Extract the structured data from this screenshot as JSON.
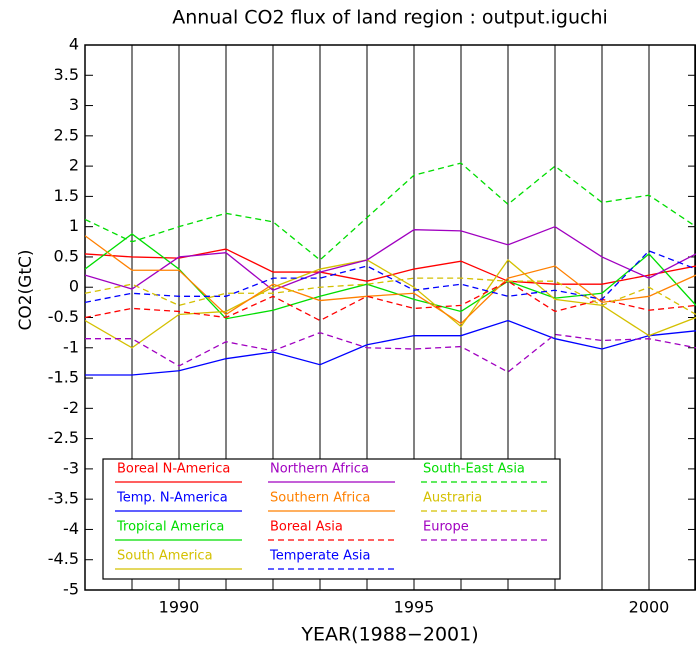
{
  "chart_data": {
    "type": "line",
    "title": "Annual CO2 flux of land region : output.iguchi",
    "x_label": "YEAR(1988−2001)",
    "y_label": "CO2(GtC)",
    "x": [
      1988,
      1989,
      1990,
      1991,
      1992,
      1993,
      1994,
      1995,
      1996,
      1997,
      1998,
      1999,
      2000,
      2001
    ],
    "xlim": [
      1988,
      2001
    ],
    "xticks": [
      1990,
      1995,
      2000
    ],
    "ylim": [
      -5,
      4
    ],
    "yticks": [
      -5,
      -4.5,
      -4,
      -3.5,
      -3,
      -2.5,
      -2,
      -1.5,
      -1,
      -0.5,
      0,
      0.5,
      1,
      1.5,
      2,
      2.5,
      3,
      3.5,
      4
    ],
    "grid": true,
    "series": [
      {
        "name": "Boreal N-America",
        "color": "#ff0000",
        "dash": false,
        "values": [
          0.55,
          0.5,
          0.48,
          0.63,
          0.25,
          0.25,
          0.1,
          0.3,
          0.43,
          0.1,
          0.05,
          0.05,
          0.2,
          0.35
        ]
      },
      {
        "name": "Temp. N-America",
        "color": "#0000ff",
        "dash": false,
        "values": [
          -1.45,
          -1.45,
          -1.38,
          -1.18,
          -1.07,
          -1.28,
          -0.95,
          -0.8,
          -0.8,
          -0.55,
          -0.85,
          -1.02,
          -0.8,
          -0.72
        ]
      },
      {
        "name": "Tropical America",
        "color": "#00dd00",
        "dash": false,
        "values": [
          0.3,
          0.88,
          0.3,
          -0.52,
          -0.38,
          -0.15,
          0.05,
          -0.2,
          -0.4,
          0.1,
          -0.18,
          -0.1,
          0.55,
          -0.3
        ]
      },
      {
        "name": "South America",
        "color": "#d4c000",
        "dash": false,
        "values": [
          -0.55,
          -1.0,
          -0.45,
          -0.4,
          0.0,
          0.3,
          0.45,
          0.0,
          -0.65,
          0.45,
          -0.2,
          -0.3,
          -0.8,
          -0.5
        ]
      },
      {
        "name": "Northern Africa",
        "color": "#a000c0",
        "dash": false,
        "values": [
          0.2,
          -0.03,
          0.5,
          0.57,
          -0.05,
          0.25,
          0.45,
          0.95,
          0.93,
          0.7,
          1.0,
          0.5,
          0.15,
          0.55
        ]
      },
      {
        "name": "Southern Africa",
        "color": "#ff8000",
        "dash": false,
        "values": [
          0.85,
          0.28,
          0.28,
          -0.45,
          0.05,
          -0.22,
          -0.15,
          -0.1,
          -0.6,
          0.15,
          0.35,
          -0.25,
          -0.15,
          0.2
        ]
      },
      {
        "name": "Boreal Asia",
        "color": "#ff0000",
        "dash": true,
        "values": [
          -0.5,
          -0.35,
          -0.4,
          -0.5,
          -0.15,
          -0.55,
          -0.15,
          -0.35,
          -0.3,
          0.1,
          -0.4,
          -0.2,
          -0.38,
          -0.3
        ]
      },
      {
        "name": "Temperate Asia",
        "color": "#0000ff",
        "dash": true,
        "values": [
          -0.25,
          -0.1,
          -0.15,
          -0.15,
          0.15,
          0.15,
          0.35,
          -0.05,
          0.05,
          -0.15,
          -0.05,
          -0.2,
          0.6,
          0.3
        ]
      },
      {
        "name": "South-East Asia",
        "color": "#00dd00",
        "dash": true,
        "values": [
          1.12,
          0.75,
          1.0,
          1.22,
          1.08,
          0.45,
          1.15,
          1.85,
          2.05,
          1.37,
          2.0,
          1.4,
          1.52,
          1.0
        ]
      },
      {
        "name": "Austraria",
        "color": "#d4c000",
        "dash": true,
        "values": [
          -0.1,
          0.05,
          -0.3,
          -0.1,
          -0.1,
          0.0,
          0.05,
          0.15,
          0.15,
          0.1,
          0.1,
          -0.3,
          0.0,
          -0.45
        ]
      },
      {
        "name": "Europe",
        "color": "#a000c0",
        "dash": true,
        "values": [
          -0.85,
          -0.85,
          -1.3,
          -0.9,
          -1.05,
          -0.75,
          -1.0,
          -1.02,
          -0.98,
          -1.4,
          -0.78,
          -0.88,
          -0.85,
          -1.0
        ]
      }
    ]
  }
}
